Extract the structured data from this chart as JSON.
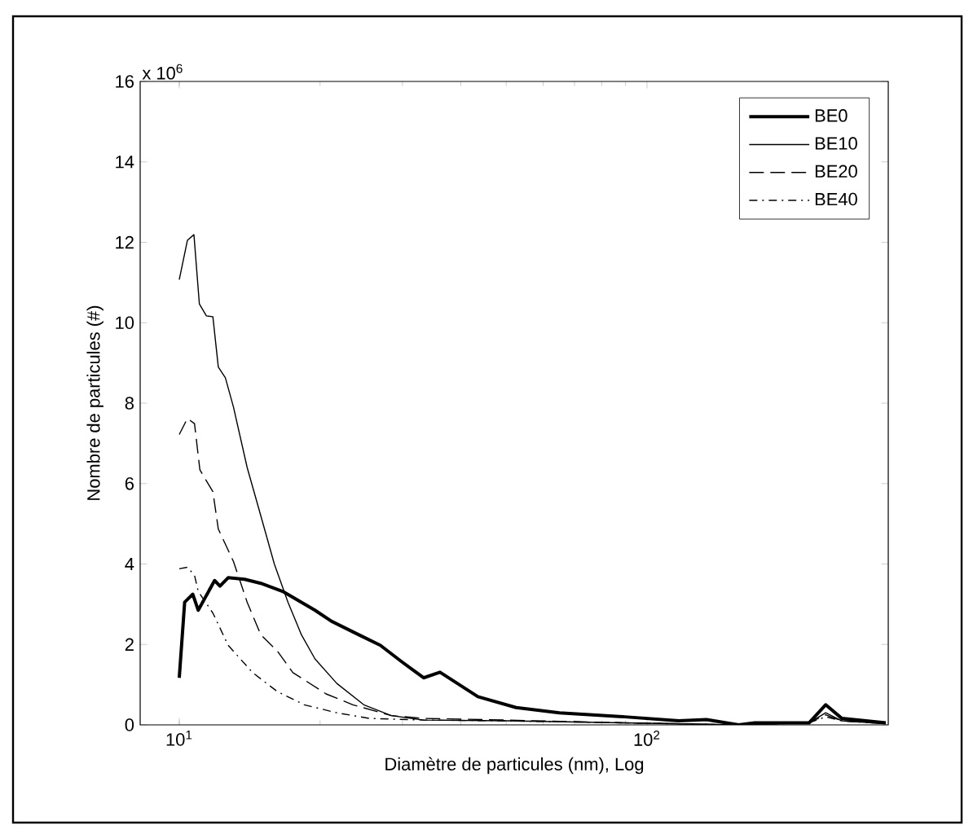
{
  "chart_data": {
    "type": "line",
    "xlabel": "Diamètre de particules (nm), Log",
    "ylabel": "Nombre de particules (#)",
    "annotations": [
      "x 10$^{6}$"
    ],
    "log": "x",
    "xlim": [
      8.25,
      328
    ],
    "xticks": [
      {
        "value": 10,
        "label": "10$^{1}$"
      },
      {
        "value": 100,
        "label": "10$^{2}$"
      }
    ],
    "ylim": [
      0,
      16
    ],
    "yticks": [
      0,
      2,
      4,
      6,
      8,
      10,
      12,
      14,
      16
    ],
    "grid": false,
    "legend": "top right",
    "marker": "none",
    "series": [
      {
        "name": "BE0",
        "color": "#000000",
        "line_style": "solid",
        "x": [
          10.0,
          10.27,
          10.69,
          10.98,
          11.9,
          12.22,
          12.72,
          13.79,
          14.94,
          16.63,
          19.51,
          21.14,
          24.2,
          26.9,
          29.9,
          33.3,
          36.1,
          43.5,
          52.5,
          65.0,
          89.6,
          117,
          134,
          157,
          170,
          222,
          241,
          261,
          324
        ],
        "values": [
          1.17,
          3.05,
          3.25,
          2.85,
          3.59,
          3.45,
          3.66,
          3.62,
          3.52,
          3.32,
          2.85,
          2.58,
          2.24,
          1.98,
          1.57,
          1.17,
          1.31,
          0.7,
          0.43,
          0.3,
          0.2,
          0.1,
          0.13,
          0,
          0.05,
          0.05,
          0.5,
          0.16,
          0.05
        ]
      },
      {
        "name": "BE10",
        "color": "#000000",
        "line_style": "solid",
        "x": [
          10.0,
          10.41,
          10.75,
          11.04,
          11.43,
          11.8,
          12.12,
          12.55,
          13.06,
          13.97,
          14.94,
          15.97,
          17.08,
          18.25,
          19.51,
          21.72,
          24.8,
          28.4,
          33.3,
          49.8,
          89.6,
          157,
          222,
          241,
          261,
          324
        ],
        "values": [
          11.07,
          12.05,
          12.19,
          10.47,
          10.17,
          10.15,
          8.9,
          8.63,
          7.9,
          6.4,
          5.2,
          4.0,
          3.05,
          2.24,
          1.64,
          1.03,
          0.5,
          0.23,
          0.12,
          0.1,
          0.05,
          0,
          0.05,
          0.3,
          0.1,
          0.03
        ]
      },
      {
        "name": "BE20",
        "color": "#000000",
        "line_style": "dashed",
        "x": [
          10.0,
          10.41,
          10.78,
          11.07,
          11.8,
          12.12,
          13.06,
          13.97,
          14.94,
          16.2,
          17.5,
          20.6,
          23.5,
          28.4,
          33.3,
          49.8,
          89.6,
          157,
          222,
          241,
          261,
          324
        ],
        "values": [
          7.22,
          7.62,
          7.49,
          6.34,
          5.8,
          4.87,
          4.06,
          3.05,
          2.24,
          1.84,
          1.3,
          0.77,
          0.5,
          0.23,
          0.16,
          0.12,
          0.05,
          0,
          0.05,
          0.25,
          0.1,
          0.03
        ]
      },
      {
        "name": "BE40",
        "color": "#000000",
        "line_style": "dashdot",
        "x": [
          10.0,
          10.41,
          10.78,
          10.98,
          11.8,
          12.72,
          14.35,
          16.2,
          18.5,
          21.72,
          25.5,
          33.3,
          49.8,
          89.6,
          157,
          222,
          241,
          261,
          324
        ],
        "values": [
          3.88,
          3.92,
          3.72,
          3.32,
          2.78,
          1.98,
          1.3,
          0.83,
          0.5,
          0.3,
          0.16,
          0.12,
          0.1,
          0.05,
          0,
          0.05,
          0.2,
          0.1,
          0.03
        ]
      }
    ]
  }
}
